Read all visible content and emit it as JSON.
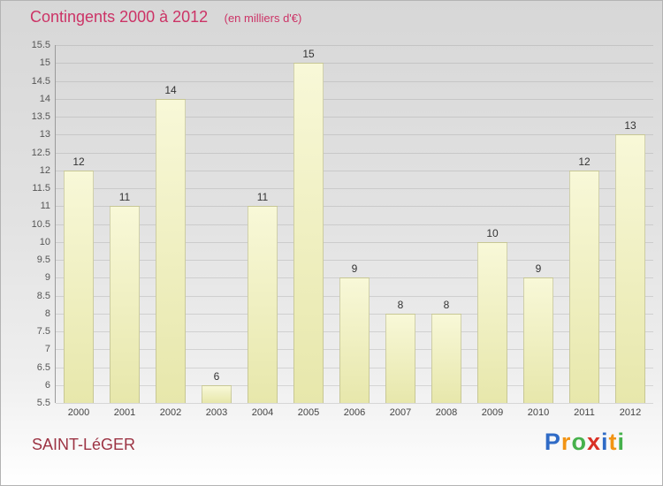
{
  "title": "Contingents 2000 à 2012",
  "subtitle": "(en milliers d'€)",
  "footer": {
    "place": "SAINT-LéGER"
  },
  "logo": {
    "text": "Proxiti",
    "letters": [
      {
        "ch": "P",
        "color": "#2f6bc6"
      },
      {
        "ch": "r",
        "color": "#f29414"
      },
      {
        "ch": "o",
        "color": "#46b14c"
      },
      {
        "ch": "x",
        "color": "#d93025"
      },
      {
        "ch": "i",
        "color": "#2f6bc6"
      },
      {
        "ch": "t",
        "color": "#f29414"
      },
      {
        "ch": "i",
        "color": "#46b14c"
      }
    ]
  },
  "colors": {
    "title": "#cc3366",
    "place": "#9c3343",
    "bar_top": "#f8f8d8",
    "bar_bottom": "#e7e7ab",
    "tick_label": "#555555",
    "value_label": "#333333"
  },
  "chart_data": {
    "type": "bar",
    "title": "Contingents 2000 à 2012",
    "subtitle": "(en milliers d'€)",
    "categories": [
      "2000",
      "2001",
      "2002",
      "2003",
      "2004",
      "2005",
      "2006",
      "2007",
      "2008",
      "2009",
      "2010",
      "2011",
      "2012"
    ],
    "values": [
      12,
      11,
      14,
      6,
      11,
      15,
      9,
      8,
      8,
      10,
      9,
      12,
      13
    ],
    "xlabel": "",
    "ylabel": "",
    "ylim": [
      5.5,
      15.5
    ],
    "yticks": [
      5.5,
      6,
      6.5,
      7,
      7.5,
      8,
      8.5,
      9,
      9.5,
      10,
      10.5,
      11,
      11.5,
      12,
      12.5,
      13,
      13.5,
      14,
      14.5,
      15,
      15.5
    ],
    "grid": true,
    "legend": false
  }
}
